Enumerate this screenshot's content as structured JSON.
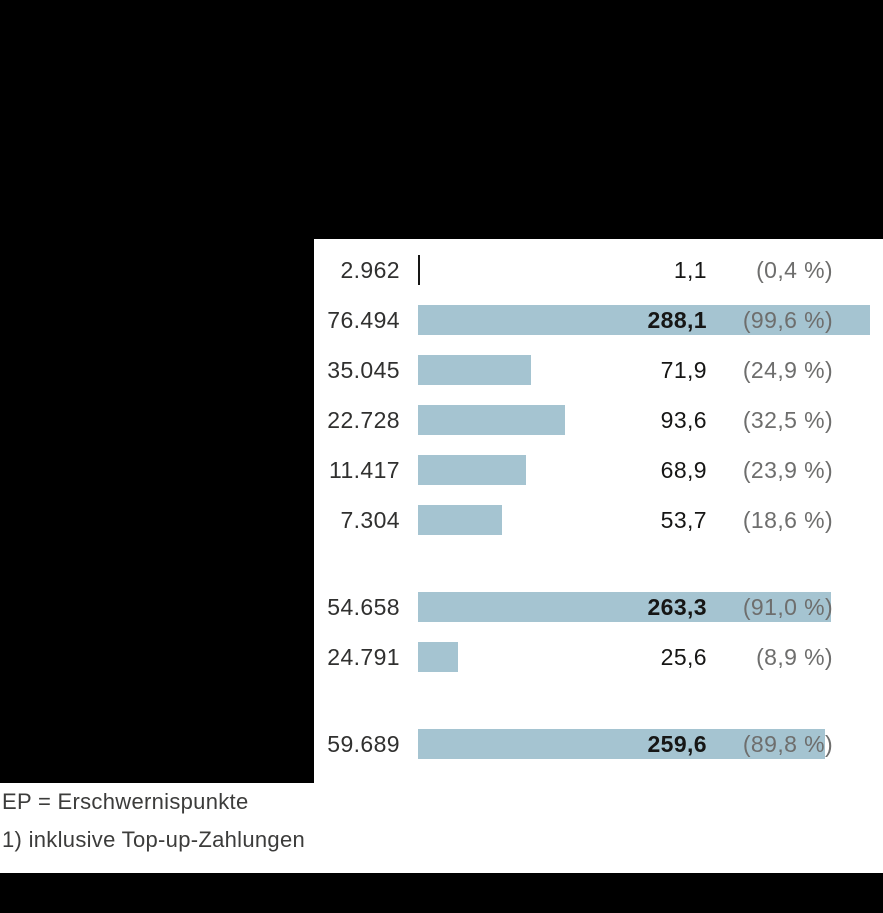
{
  "chart_data": {
    "type": "bar",
    "orientation": "horizontal",
    "value_max_for_scale": 288.1,
    "rows": [
      {
        "ep_count": "2.962",
        "value": 1.1,
        "value_label": "1,1",
        "percent_label": "(0,4 %)",
        "emphasis": false,
        "new_group": false
      },
      {
        "ep_count": "76.494",
        "value": 288.1,
        "value_label": "288,1",
        "percent_label": "(99,6 %)",
        "emphasis": true,
        "new_group": false
      },
      {
        "ep_count": "35.045",
        "value": 71.9,
        "value_label": "71,9",
        "percent_label": "(24,9 %)",
        "emphasis": false,
        "new_group": false
      },
      {
        "ep_count": "22.728",
        "value": 93.6,
        "value_label": "93,6",
        "percent_label": "(32,5 %)",
        "emphasis": false,
        "new_group": false
      },
      {
        "ep_count": "11.417",
        "value": 68.9,
        "value_label": "68,9",
        "percent_label": "(23,9 %)",
        "emphasis": false,
        "new_group": false
      },
      {
        "ep_count": "7.304",
        "value": 53.7,
        "value_label": "53,7",
        "percent_label": "(18,6 %)",
        "emphasis": false,
        "new_group": false
      },
      {
        "ep_count": "54.658",
        "value": 263.3,
        "value_label": "263,3",
        "percent_label": "(91,0 %)",
        "emphasis": true,
        "new_group": true
      },
      {
        "ep_count": "24.791",
        "value": 25.6,
        "value_label": "25,6",
        "percent_label": "(8,9 %)",
        "emphasis": false,
        "new_group": false
      },
      {
        "ep_count": "59.689",
        "value": 259.6,
        "value_label": "259,6",
        "percent_label": "(89,8 %)",
        "emphasis": true,
        "new_group": true
      }
    ]
  },
  "footnotes": {
    "line1": "EP = Erschwernispunkte",
    "line2": "1) inklusive Top-up-Zahlungen"
  },
  "colors": {
    "bar": "#a5c4d1",
    "value_text": "#161615",
    "percent_text": "#6e6e6d",
    "ep_text": "#30302f",
    "footnote_text": "#3c3c3b",
    "block": "#000000"
  }
}
